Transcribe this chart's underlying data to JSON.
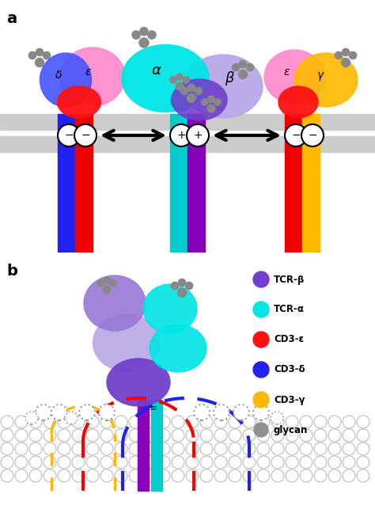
{
  "colors": {
    "tcr_alpha": "#00E5E5",
    "tcr_beta_light": "#B8A8E8",
    "tcr_beta_dark": "#7040CC",
    "cd3_epsilon_pink": "#FF88CC",
    "cd3_delta_blue": "#2222EE",
    "cd3_epsilon_red": "#FF1111",
    "cd3_gamma_yellow": "#FFB800",
    "glycan": "#888888",
    "membrane": "#C8C8C8",
    "purple_tm": "#8800BB",
    "cyan_tm": "#00CCCC",
    "blue_tm": "#2222EE",
    "red_tm": "#EE0000",
    "yellow_tm": "#FFB800",
    "background": "#FFFFFF"
  },
  "legend": {
    "items": [
      "TCR-β",
      "TCR-α",
      "CD3-ε",
      "CD3-δ",
      "CD3-γ",
      "glycan"
    ],
    "colors": [
      "#7040CC",
      "#00E5E5",
      "#FF1111",
      "#2222EE",
      "#FFB800",
      "#909090"
    ]
  }
}
